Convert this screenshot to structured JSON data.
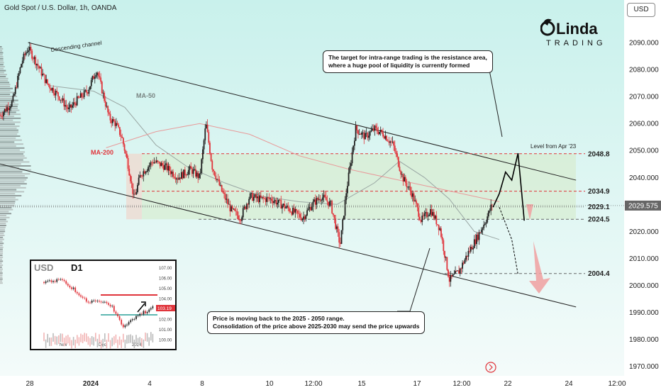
{
  "header": {
    "title": "Gold Spot / U.S. Dollar, 1h, OANDA",
    "currency_button": "USD"
  },
  "logo": {
    "text_top": "Linda",
    "text_bottom": "TRADING",
    "brand_color": "#111111"
  },
  "annotations": {
    "channel_label": "Descending channel",
    "ma50_label": "MA-50",
    "ma200_label": "MA-200",
    "level_label": "Level from Apr '23",
    "target_note_line1": "The target for intra-range trading is the resistance area,",
    "target_note_line2": "where a huge pool of liquidity is currently formed",
    "price_note_line1": "Price is moving back to the 2025 - 2050 range.",
    "price_note_line2": "Consolidation of the price above 2025-2030 may send the price upwards"
  },
  "inset": {
    "symbol": "USD",
    "timeframe": "D1",
    "price_tag": "103.19",
    "x_ticks": [
      "Nov",
      "Dec",
      "2024"
    ],
    "y_ticks": [
      "107.00",
      "106.00",
      "105.00",
      "104.00",
      "103.00",
      "102.00",
      "101.00",
      "100.00"
    ]
  },
  "colors": {
    "up": "#222222",
    "down": "#e0343b",
    "resistance": "#e0343b",
    "ma50": "#9aa7a4",
    "ma200": "#e89a9a",
    "range_fill": "#d7ecd0",
    "current_price": "#555555"
  },
  "chart_data": {
    "type": "candlestick",
    "symbol": "Gold Spot / U.S. Dollar",
    "timeframe": "1h",
    "x_ticks": [
      "28",
      "2024",
      "4",
      "8",
      "10",
      "12:00",
      "15",
      "17",
      "12:00",
      "22",
      "24",
      "12:00"
    ],
    "y_ticks": [
      1970,
      1980,
      1990,
      2000,
      2010,
      2020,
      2030,
      2040,
      2050,
      2060,
      2070,
      2080,
      2090
    ],
    "y_range": [
      1967,
      2100
    ],
    "levels": [
      {
        "label": "2048.8",
        "value": 2048.8,
        "style": "dashed-red"
      },
      {
        "label": "2034.9",
        "value": 2034.9,
        "style": "dashed-red"
      },
      {
        "label": "2029.1",
        "value": 2029.1,
        "style": "dotted-gray"
      },
      {
        "label": "2024.5",
        "value": 2024.5,
        "style": "dashed-gray"
      },
      {
        "label": "2004.4",
        "value": 2004.4,
        "style": "dashed-gray"
      }
    ],
    "current_price": {
      "label": "2029.575",
      "value": 2029.575
    },
    "range_zone": [
      2024.5,
      2048.8
    ],
    "price_path": [
      [
        0,
        2063
      ],
      [
        0.02,
        2068
      ],
      [
        0.035,
        2083
      ],
      [
        0.045,
        2088
      ],
      [
        0.055,
        2084
      ],
      [
        0.075,
        2075
      ],
      [
        0.095,
        2070
      ],
      [
        0.11,
        2065
      ],
      [
        0.125,
        2069
      ],
      [
        0.14,
        2072
      ],
      [
        0.155,
        2080
      ],
      [
        0.165,
        2071
      ],
      [
        0.175,
        2062
      ],
      [
        0.185,
        2060
      ],
      [
        0.195,
        2055
      ],
      [
        0.205,
        2045
      ],
      [
        0.215,
        2032
      ],
      [
        0.225,
        2041
      ],
      [
        0.245,
        2046
      ],
      [
        0.265,
        2044
      ],
      [
        0.285,
        2040
      ],
      [
        0.305,
        2043
      ],
      [
        0.32,
        2040
      ],
      [
        0.33,
        2060
      ],
      [
        0.34,
        2044
      ],
      [
        0.355,
        2035
      ],
      [
        0.37,
        2028
      ],
      [
        0.385,
        2025
      ],
      [
        0.4,
        2033
      ],
      [
        0.415,
        2032
      ],
      [
        0.435,
        2032
      ],
      [
        0.45,
        2030
      ],
      [
        0.465,
        2028
      ],
      [
        0.485,
        2025
      ],
      [
        0.5,
        2030
      ],
      [
        0.515,
        2033
      ],
      [
        0.53,
        2030
      ],
      [
        0.545,
        2015
      ],
      [
        0.555,
        2035
      ],
      [
        0.57,
        2058
      ],
      [
        0.585,
        2055
      ],
      [
        0.6,
        2058
      ],
      [
        0.615,
        2056
      ],
      [
        0.63,
        2052
      ],
      [
        0.645,
        2040
      ],
      [
        0.66,
        2034
      ],
      [
        0.675,
        2024
      ],
      [
        0.69,
        2028
      ],
      [
        0.705,
        2021
      ],
      [
        0.72,
        2002
      ],
      [
        0.735,
        2005
      ],
      [
        0.75,
        2012
      ],
      [
        0.765,
        2018
      ],
      [
        0.78,
        2025
      ],
      [
        0.79,
        2031
      ]
    ],
    "series": [
      {
        "name": "MA-50",
        "points": [
          [
            0.08,
            2074
          ],
          [
            0.15,
            2072
          ],
          [
            0.2,
            2066
          ],
          [
            0.25,
            2052
          ],
          [
            0.3,
            2044
          ],
          [
            0.36,
            2038
          ],
          [
            0.42,
            2033
          ],
          [
            0.48,
            2031
          ],
          [
            0.54,
            2030
          ],
          [
            0.6,
            2038
          ],
          [
            0.64,
            2046
          ],
          [
            0.68,
            2040
          ],
          [
            0.72,
            2032
          ],
          [
            0.76,
            2020
          ],
          [
            0.8,
            2017
          ]
        ]
      },
      {
        "name": "MA-200",
        "points": [
          [
            0.17,
            2051
          ],
          [
            0.25,
            2057
          ],
          [
            0.32,
            2060
          ],
          [
            0.4,
            2056
          ],
          [
            0.48,
            2048
          ],
          [
            0.56,
            2043
          ],
          [
            0.64,
            2039
          ],
          [
            0.72,
            2035
          ],
          [
            0.8,
            2031
          ]
        ]
      }
    ],
    "channel": {
      "upper": [
        [
          0.02,
          2090
        ],
        [
          0.94,
          2039
        ]
      ],
      "lower": [
        [
          0.0,
          2045
        ],
        [
          0.94,
          1992
        ]
      ]
    },
    "projections": {
      "up": [
        [
          0.79,
          2029
        ],
        [
          0.8,
          2034
        ],
        [
          0.81,
          2042
        ],
        [
          0.82,
          2039
        ],
        [
          0.83,
          2049
        ],
        [
          0.84,
          2024
        ]
      ],
      "down": [
        [
          0.8,
          2029
        ],
        [
          0.81,
          2023
        ],
        [
          0.82,
          2017
        ],
        [
          0.83,
          2004
        ]
      ]
    }
  }
}
